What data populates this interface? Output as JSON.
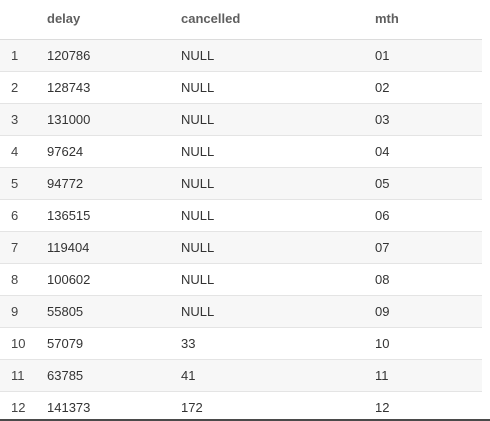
{
  "table": {
    "columns": [
      "delay",
      "cancelled",
      "mth"
    ],
    "rows": [
      {
        "index": "1",
        "delay": "120786",
        "cancelled": "NULL",
        "mth": "01"
      },
      {
        "index": "2",
        "delay": "128743",
        "cancelled": "NULL",
        "mth": "02"
      },
      {
        "index": "3",
        "delay": "131000",
        "cancelled": "NULL",
        "mth": "03"
      },
      {
        "index": "4",
        "delay": "97624",
        "cancelled": "NULL",
        "mth": "04"
      },
      {
        "index": "5",
        "delay": "94772",
        "cancelled": "NULL",
        "mth": "05"
      },
      {
        "index": "6",
        "delay": "136515",
        "cancelled": "NULL",
        "mth": "06"
      },
      {
        "index": "7",
        "delay": "119404",
        "cancelled": "NULL",
        "mth": "07"
      },
      {
        "index": "8",
        "delay": "100602",
        "cancelled": "NULL",
        "mth": "08"
      },
      {
        "index": "9",
        "delay": "55805",
        "cancelled": "NULL",
        "mth": "09"
      },
      {
        "index": "10",
        "delay": "57079",
        "cancelled": "33",
        "mth": "10"
      },
      {
        "index": "11",
        "delay": "63785",
        "cancelled": "41",
        "mth": "11"
      },
      {
        "index": "12",
        "delay": "141373",
        "cancelled": "172",
        "mth": "12"
      }
    ]
  },
  "colors": {
    "header_text": "#5f5f5f",
    "row_alt_bg": "#f7f7f7",
    "border": "#dcdcdc"
  }
}
